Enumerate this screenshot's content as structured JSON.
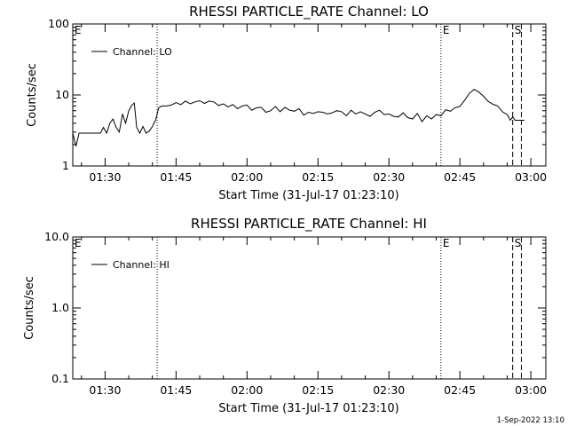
{
  "footer": {
    "timestamp": "1-Sep-2022 13:10"
  },
  "chart_data": [
    {
      "type": "line",
      "title": "RHESSI PARTICLE_RATE Channel: LO",
      "xlabel": "Start Time (31-Jul-17 01:23:10)",
      "ylabel": "Counts/sec",
      "yscale": "log",
      "ylim": [
        1,
        100
      ],
      "yticks": [
        1,
        10,
        100
      ],
      "ytick_labels": [
        "1",
        "10",
        "100"
      ],
      "xlim": [
        "01:23:10",
        "03:03:10"
      ],
      "xticks": [
        "01:30",
        "01:45",
        "02:00",
        "02:15",
        "02:30",
        "02:45",
        "03:00"
      ],
      "grid": false,
      "legend": {
        "position": "top-left",
        "entries": [
          "Channel: LO"
        ]
      },
      "markers": [
        {
          "label": "E",
          "time": "01:23:10",
          "style": "none"
        },
        {
          "label": "",
          "time": "01:41:00",
          "style": "dotted"
        },
        {
          "label": "E",
          "time": "02:41:00",
          "style": "dotted"
        },
        {
          "label": "S",
          "time": "02:56:10",
          "style": "dashed"
        },
        {
          "label": "",
          "time": "02:58:00",
          "style": "dashed"
        }
      ],
      "series": [
        {
          "name": "Channel: LO",
          "x": [
            "01:23:10",
            "01:23:50",
            "01:24:30",
            "01:29:00",
            "01:29:40",
            "01:30:20",
            "01:31:00",
            "01:31:40",
            "01:32:20",
            "01:33:00",
            "01:33:40",
            "01:34:20",
            "01:35:00",
            "01:35:40",
            "01:36:10",
            "01:36:40",
            "01:37:20",
            "01:38:00",
            "01:38:40",
            "01:39:20",
            "01:40:00",
            "01:40:40",
            "01:41:20",
            "01:42:00",
            "01:43:00",
            "01:44:00",
            "01:45:00",
            "01:46:00",
            "01:47:00",
            "01:48:00",
            "01:49:00",
            "01:50:00",
            "01:51:00",
            "01:52:00",
            "01:53:00",
            "01:54:00",
            "01:55:00",
            "01:56:00",
            "01:57:00",
            "01:58:00",
            "01:59:00",
            "02:00:00",
            "02:01:00",
            "02:02:00",
            "02:03:00",
            "02:04:00",
            "02:05:00",
            "02:06:00",
            "02:07:00",
            "02:08:00",
            "02:09:00",
            "02:10:00",
            "02:11:00",
            "02:12:00",
            "02:13:00",
            "02:14:00",
            "02:15:00",
            "02:16:00",
            "02:17:00",
            "02:18:00",
            "02:19:00",
            "02:20:00",
            "02:21:00",
            "02:22:00",
            "02:23:00",
            "02:24:00",
            "02:25:00",
            "02:26:00",
            "02:27:00",
            "02:28:00",
            "02:29:00",
            "02:30:00",
            "02:31:00",
            "02:32:00",
            "02:33:00",
            "02:34:00",
            "02:35:00",
            "02:36:00",
            "02:37:00",
            "02:38:00",
            "02:39:00",
            "02:40:00",
            "02:41:00",
            "02:42:00",
            "02:43:00",
            "02:44:00",
            "02:45:00",
            "02:46:00",
            "02:47:00",
            "02:48:00",
            "02:49:00",
            "02:50:00",
            "02:51:00",
            "02:52:00",
            "02:53:00",
            "02:54:00",
            "02:55:00",
            "02:55:40",
            "02:56:10",
            "02:56:40",
            "02:57:10",
            "02:57:40",
            "02:58:10",
            "02:58:40"
          ],
          "values": [
            2.9,
            1.9,
            2.9,
            2.9,
            3.5,
            2.9,
            4.0,
            4.6,
            3.5,
            3.0,
            5.4,
            4.0,
            6.0,
            7.2,
            7.7,
            3.5,
            2.9,
            3.6,
            2.9,
            3.1,
            3.6,
            4.4,
            6.6,
            7.0,
            7.0,
            7.2,
            7.8,
            7.3,
            8.2,
            7.5,
            8.0,
            8.3,
            7.6,
            8.2,
            8.0,
            7.1,
            7.5,
            6.8,
            7.3,
            6.4,
            7.0,
            7.2,
            6.1,
            6.6,
            6.7,
            5.7,
            6.0,
            6.9,
            5.8,
            6.7,
            6.1,
            5.9,
            6.4,
            5.2,
            5.7,
            5.5,
            5.8,
            5.7,
            5.4,
            5.6,
            6.0,
            5.8,
            5.1,
            6.1,
            5.4,
            5.8,
            5.4,
            5.0,
            5.7,
            6.1,
            5.3,
            5.4,
            5.0,
            4.9,
            5.6,
            4.8,
            4.6,
            5.5,
            4.2,
            5.1,
            4.6,
            5.3,
            5.1,
            6.2,
            5.9,
            6.6,
            6.9,
            8.4,
            10.5,
            12.0,
            11.0,
            9.6,
            8.1,
            7.4,
            7.0,
            5.8,
            5.3,
            4.4,
            4.9,
            4.4,
            4.4,
            4.4,
            4.4,
            4.4
          ]
        }
      ]
    },
    {
      "type": "line",
      "title": "RHESSI PARTICLE_RATE Channel: HI",
      "xlabel": "Start Time (31-Jul-17 01:23:10)",
      "ylabel": "Counts/sec",
      "yscale": "log",
      "ylim": [
        0.1,
        10
      ],
      "yticks": [
        0.1,
        1,
        10
      ],
      "ytick_labels": [
        "0.1",
        "1.0",
        "10.0"
      ],
      "xlim": [
        "01:23:10",
        "03:03:10"
      ],
      "xticks": [
        "01:30",
        "01:45",
        "02:00",
        "02:15",
        "02:30",
        "02:45",
        "03:00"
      ],
      "grid": false,
      "legend": {
        "position": "top-left",
        "entries": [
          "Channel: HI"
        ]
      },
      "markers": [
        {
          "label": "E",
          "time": "01:23:10",
          "style": "none"
        },
        {
          "label": "",
          "time": "01:41:00",
          "style": "dotted"
        },
        {
          "label": "E",
          "time": "02:41:00",
          "style": "dotted"
        },
        {
          "label": "S",
          "time": "02:56:10",
          "style": "dashed"
        },
        {
          "label": "",
          "time": "02:58:00",
          "style": "dashed"
        }
      ],
      "series": [
        {
          "name": "Channel: HI",
          "x": [],
          "values": []
        }
      ]
    }
  ]
}
